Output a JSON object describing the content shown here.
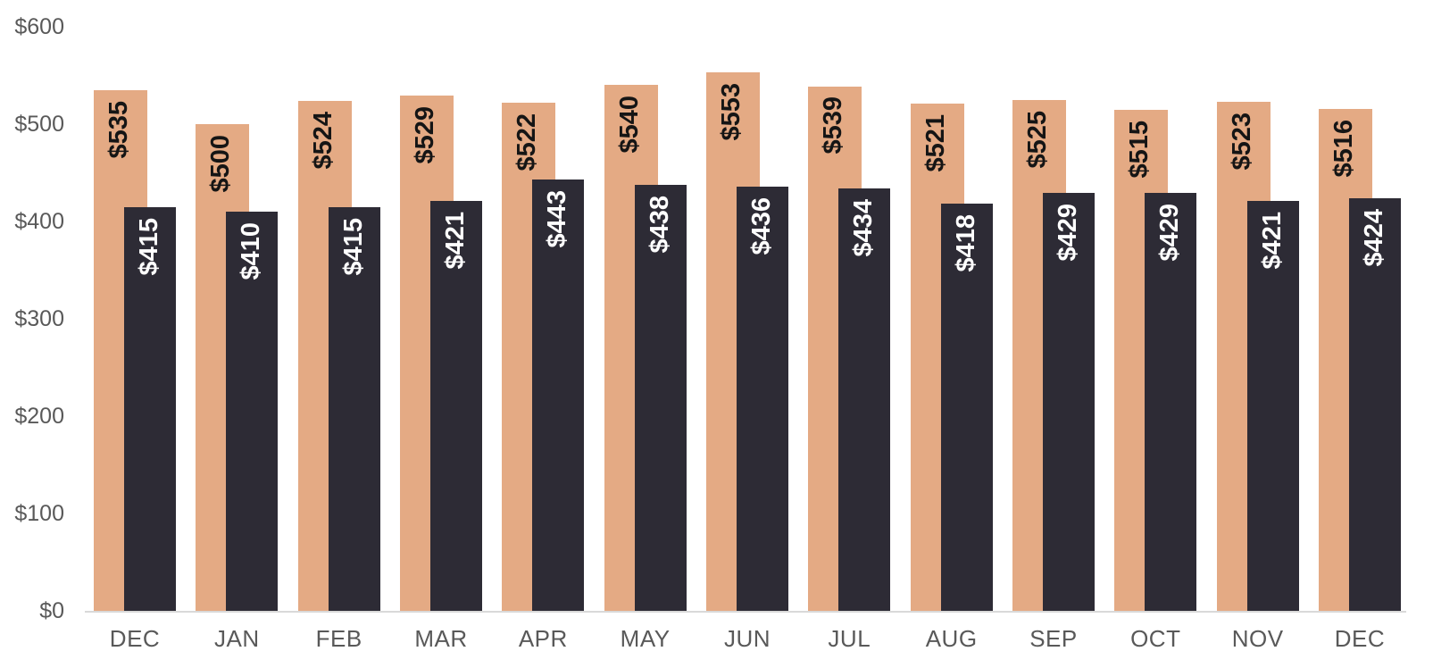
{
  "chart_data": {
    "type": "bar",
    "title": "",
    "categories": [
      "DEC",
      "JAN",
      "FEB",
      "MAR",
      "APR",
      "MAY",
      "JUN",
      "JUL",
      "AUG",
      "SEP",
      "OCT",
      "NOV",
      "DEC"
    ],
    "series": [
      {
        "name": "peach-series",
        "color": "#e4aa84",
        "label_text_color": "#151515",
        "values": [
          535,
          500,
          524,
          529,
          522,
          540,
          553,
          539,
          521,
          525,
          515,
          523,
          516
        ]
      },
      {
        "name": "dark-series",
        "color": "#2d2b35",
        "label_text_color": "#ffffff",
        "values": [
          415,
          410,
          415,
          421,
          443,
          438,
          436,
          434,
          418,
          429,
          429,
          421,
          424
        ]
      }
    ],
    "data_label_prefix": "$",
    "y_axis": {
      "min": 0,
      "max": 600,
      "ticks": [
        {
          "value": 0,
          "label": "$0"
        },
        {
          "value": 100,
          "label": "$100"
        },
        {
          "value": 200,
          "label": "$200"
        },
        {
          "value": 300,
          "label": "$300"
        },
        {
          "value": 400,
          "label": "$400"
        },
        {
          "value": 500,
          "label": "$500"
        },
        {
          "value": 600,
          "label": "$600"
        }
      ]
    },
    "grid": false,
    "legend_position": "none",
    "axis_text_color": "#595959",
    "axis_line_color": "#d9d9d9",
    "background": "#ffffff"
  }
}
